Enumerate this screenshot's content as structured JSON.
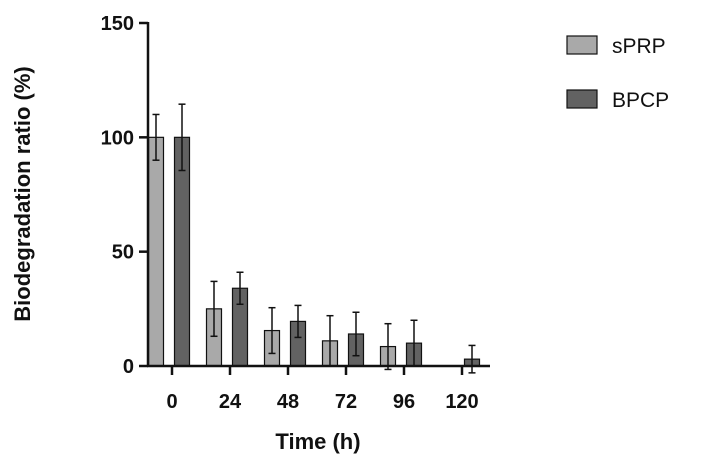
{
  "chart_data": {
    "type": "bar",
    "xlabel": "Time (h)",
    "ylabel": "Biodegradation ratio (%)",
    "ylim": [
      0,
      150
    ],
    "yticks": [
      0,
      50,
      100,
      150
    ],
    "categories": [
      "0",
      "24",
      "48",
      "72",
      "96",
      "120"
    ],
    "series": [
      {
        "name": "sPRP",
        "color": "#a9a9a9",
        "values": [
          100,
          25,
          15.5,
          11,
          8.5,
          0
        ],
        "errors": [
          10,
          12,
          10,
          11,
          10,
          0
        ]
      },
      {
        "name": "BPCP",
        "color": "#626262",
        "values": [
          100,
          34,
          19.5,
          14,
          10,
          3
        ],
        "errors": [
          14.5,
          7,
          7,
          9.5,
          10,
          6
        ]
      }
    ],
    "legend_position": "top-right",
    "grid": false
  }
}
